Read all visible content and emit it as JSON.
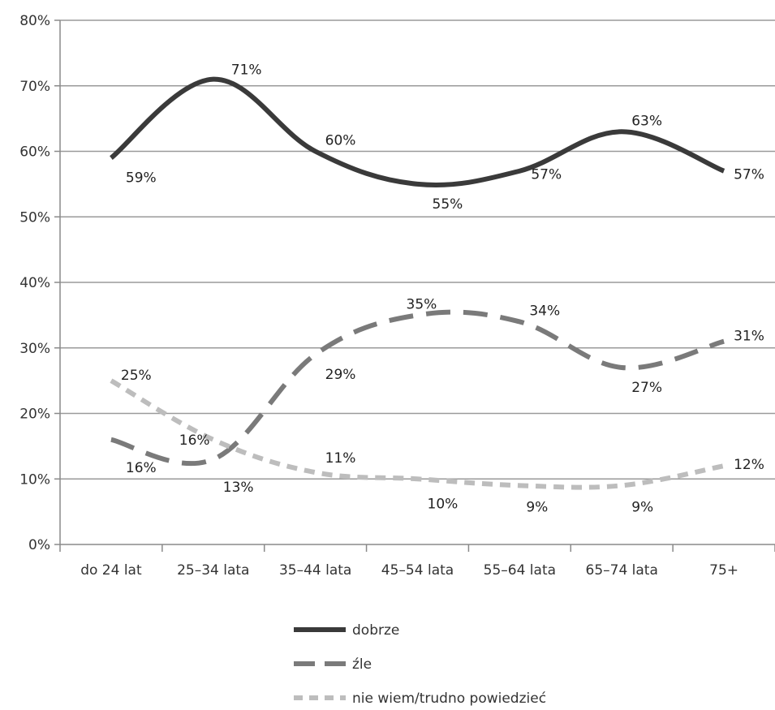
{
  "chart_data": {
    "type": "line",
    "title": "",
    "xlabel": "",
    "ylabel": "",
    "categories": [
      "do 24 lat",
      "25–34 lata",
      "35–44 lata",
      "45–54 lata",
      "55–64 lata",
      "65–74 lata",
      "75+"
    ],
    "y_ticks": [
      "0%",
      "10%",
      "20%",
      "30%",
      "40%",
      "50%",
      "60%",
      "70%",
      "80%"
    ],
    "ylim": [
      0,
      80
    ],
    "grid": true,
    "legend_position": "bottom",
    "series": [
      {
        "name": "dobrze",
        "values": [
          59,
          71,
          60,
          55,
          57,
          63,
          57
        ],
        "labels": [
          "59%",
          "71%",
          "60%",
          "55%",
          "57%",
          "63%",
          "57%"
        ],
        "color": "#3a3a3a",
        "dash": "solid"
      },
      {
        "name": "źle",
        "values": [
          16,
          13,
          29,
          35,
          34,
          27,
          31
        ],
        "labels": [
          "16%",
          "13%",
          "29%",
          "35%",
          "34%",
          "27%",
          "31%"
        ],
        "color": "#7a7a7a",
        "dash": "dashed"
      },
      {
        "name": "nie wiem/trudno powiedzieć",
        "values": [
          25,
          16,
          11,
          10,
          9,
          9,
          12
        ],
        "labels": [
          "25%",
          "16%",
          "11%",
          "10%",
          "9%",
          "9%",
          "12%"
        ],
        "color": "#bdbdbd",
        "dash": "dotted"
      }
    ]
  }
}
